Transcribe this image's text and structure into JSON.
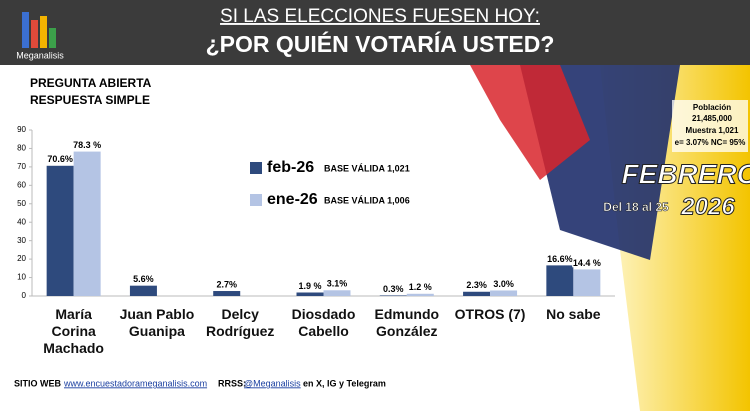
{
  "chart_data": {
    "type": "bar",
    "title": "SI LAS ELECCIONES FUESEN HOY:",
    "subtitle": "¿POR QUIÉN VOTARÍA USTED?",
    "brand": "Meganalisis",
    "question_type": [
      "PREGUNTA ABIERTA",
      "RESPUESTA SIMPLE"
    ],
    "categories": [
      "María Corina Machado",
      "Juan Pablo Guanipa",
      "Delcy Rodríguez",
      "Diosdado Cabello",
      "Edmundo González",
      "OTROS (7)",
      "No sabe"
    ],
    "series": [
      {
        "name": "feb-26",
        "note": "BASE VÁLIDA 1,021",
        "color": "#2e4a7d",
        "values": [
          70.6,
          5.6,
          2.7,
          1.9,
          0.3,
          2.3,
          16.6
        ],
        "value_labels": [
          "70.6%",
          "5.6%",
          "2.7%",
          "1.9 %",
          "0.3%",
          "2.3%",
          "16.6%"
        ]
      },
      {
        "name": "ene-26",
        "note": "BASE VÁLIDA 1,006",
        "color": "#b4c4e4",
        "values": [
          78.3,
          null,
          null,
          3.1,
          1.2,
          3.0,
          14.4
        ],
        "value_labels": [
          "78.3 %",
          null,
          null,
          "3.1%",
          "1.2 %",
          "3.0%",
          "14.4 %"
        ]
      }
    ],
    "ylim": [
      0,
      90
    ],
    "yticks": [
      0,
      10,
      20,
      30,
      40,
      50,
      60,
      70,
      80,
      90
    ],
    "grid": false,
    "study": {
      "population_label": "Población",
      "population": "21,485,000",
      "sample": "Muestra 1,021",
      "error": "e= 3.07%  NC= 95%",
      "month": "FEBRERO",
      "dates": "Del 18 al 25",
      "year": "2026"
    },
    "footer": {
      "site_label": "SITIO WEB",
      "site": "www.encuestadorameganalisis.com",
      "social_label": "RRSS:",
      "handle": "@Meganalisis",
      "networks": "en X, IG y Telegram"
    }
  }
}
